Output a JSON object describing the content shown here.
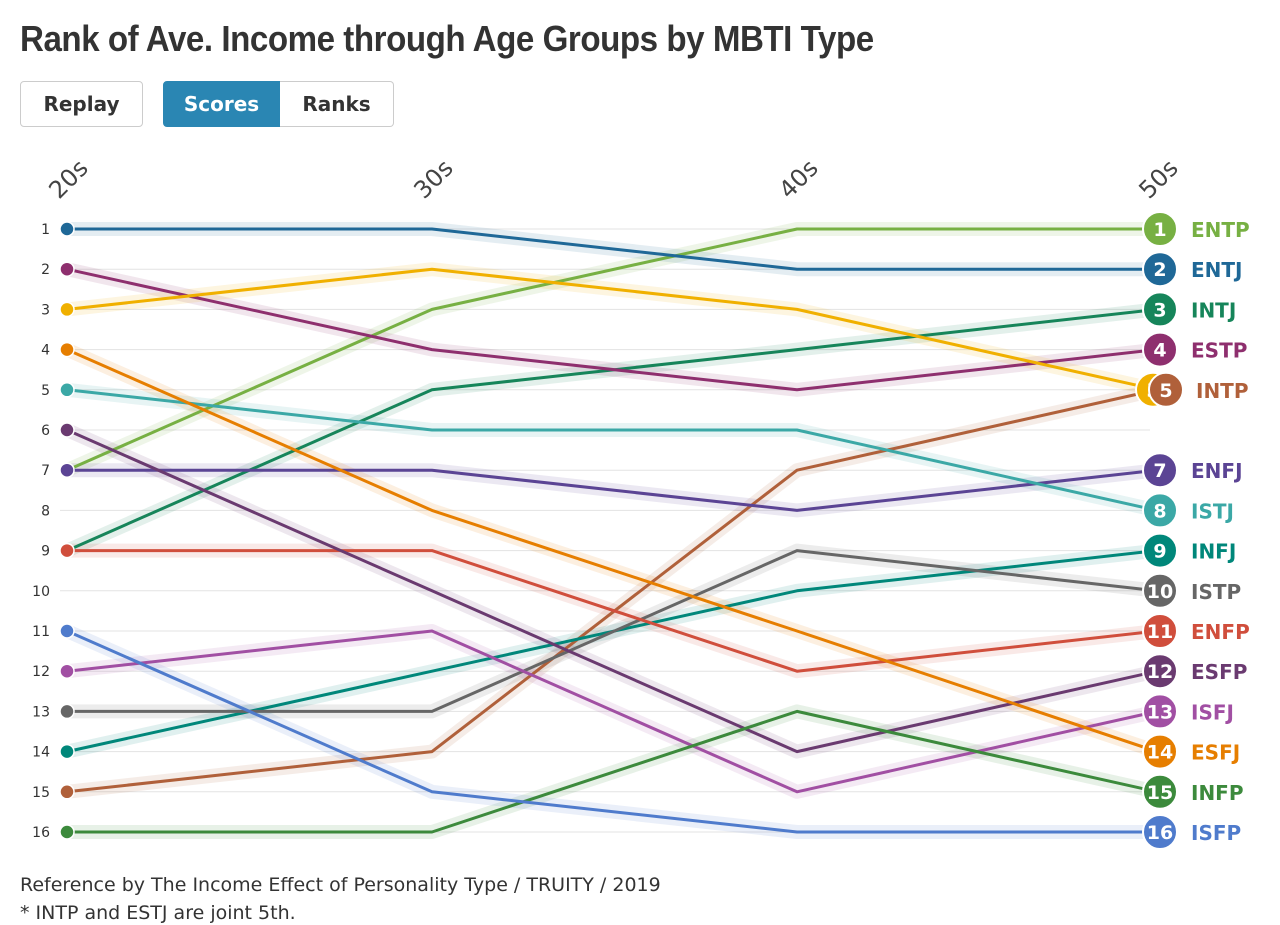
{
  "title": "Rank of Ave. Income through Age Groups by MBTI Type",
  "controls": {
    "replay": "Replay",
    "scores": "Scores",
    "ranks": "Ranks",
    "active": "Scores"
  },
  "chart_data": {
    "type": "line",
    "subtype": "bump",
    "categories": [
      "20s",
      "30s",
      "40s",
      "50s"
    ],
    "y_ticks": [
      "1",
      "2",
      "3",
      "4",
      "5",
      "6",
      "7",
      "8",
      "9",
      "10",
      "11",
      "12",
      "13",
      "14",
      "15",
      "16"
    ],
    "ylim": [
      1,
      16
    ],
    "y_reversed": true,
    "grid": true,
    "series": [
      {
        "name": "ENTP",
        "color": "#77b043",
        "values": [
          7,
          3,
          1,
          1
        ]
      },
      {
        "name": "ENTJ",
        "color": "#1f6897",
        "values": [
          1,
          1,
          2,
          2
        ]
      },
      {
        "name": "INTJ",
        "color": "#16855a",
        "values": [
          9,
          5,
          4,
          3
        ]
      },
      {
        "name": "ESTP",
        "color": "#8e2f6e",
        "values": [
          2,
          4,
          5,
          4
        ]
      },
      {
        "name": "ESTJ",
        "color": "#f0b000",
        "values": [
          3,
          2,
          3,
          5
        ],
        "label_hidden": true
      },
      {
        "name": "INTP",
        "color": "#b0603a",
        "values": [
          15,
          14,
          7,
          5
        ]
      },
      {
        "name": "ENFJ",
        "color": "#5b4494",
        "values": [
          7,
          7,
          8,
          7
        ]
      },
      {
        "name": "ISTJ",
        "color": "#3ba8a6",
        "values": [
          5,
          6,
          6,
          8
        ]
      },
      {
        "name": "INFJ",
        "color": "#00877a",
        "values": [
          14,
          12,
          10,
          9
        ]
      },
      {
        "name": "ISTP",
        "color": "#666666",
        "values": [
          13,
          13,
          9,
          10
        ]
      },
      {
        "name": "ENFP",
        "color": "#d04e3c",
        "values": [
          9,
          9,
          12,
          11
        ]
      },
      {
        "name": "ESFP",
        "color": "#6a3a70",
        "values": [
          6,
          10,
          14,
          12
        ]
      },
      {
        "name": "ISFJ",
        "color": "#a14fa3",
        "values": [
          12,
          11,
          15,
          13
        ]
      },
      {
        "name": "ESFJ",
        "color": "#e67e00",
        "values": [
          4,
          8,
          11,
          14
        ]
      },
      {
        "name": "INFP",
        "color": "#3c8a3c",
        "values": [
          16,
          16,
          13,
          15
        ]
      },
      {
        "name": "ISFP",
        "color": "#4f7bcc",
        "values": [
          11,
          15,
          16,
          16
        ]
      }
    ]
  },
  "footer": {
    "reference": "Reference by The Income Effect of Personality Type / TRUITY / 2019",
    "note": "* INTP and ESTJ are joint 5th."
  }
}
